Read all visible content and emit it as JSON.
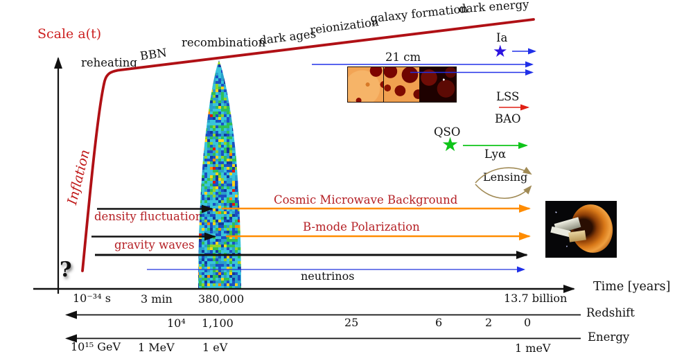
{
  "scale_label": "Scale a(t)",
  "inflation_label": "Inflation",
  "question_mark": "?",
  "epochs": {
    "reheating": "reheating",
    "bbn": "BBN",
    "recombination": "recombination",
    "dark_ages": "dark ages",
    "reionization": "reionization",
    "galaxy_formation": "galaxy formation",
    "dark_energy": "dark energy"
  },
  "probes": {
    "cmb": "Cosmic Microwave Background",
    "bmode": "B-mode Polarization",
    "density_fluctuations": "density fluctuations",
    "gravity_waves": "gravity waves",
    "neutrinos": "neutrinos",
    "cm21": "21 cm",
    "ia": "Ia",
    "lss": "LSS",
    "bao": "BAO",
    "qso": "QSO",
    "lya": "Lyα",
    "lensing": "Lensing",
    "star_glyph": "★"
  },
  "axes": {
    "time": {
      "label": "Time [years]",
      "ticks": [
        "10⁻³⁴ s",
        "3 min",
        "380,000",
        "13.7 billion"
      ]
    },
    "redshift": {
      "label": "Redshift",
      "ticks": [
        "10⁴",
        "1,100",
        "25",
        "6",
        "2",
        "0"
      ]
    },
    "energy": {
      "label": "Energy",
      "ticks": [
        "10¹⁵ GeV",
        "1 MeV",
        "1 eV",
        "1 meV"
      ]
    }
  },
  "colors": {
    "curve_red": "#b01015",
    "label_red": "#b52025",
    "scale_red": "#cc1f1f",
    "arrow_orange": "#ff8c00",
    "arrow_blue": "#2030e8",
    "arrow_green": "#0fc41a",
    "arrow_red": "#e02015",
    "arrow_tan": "#a08a55",
    "arrow_black": "#111111"
  }
}
